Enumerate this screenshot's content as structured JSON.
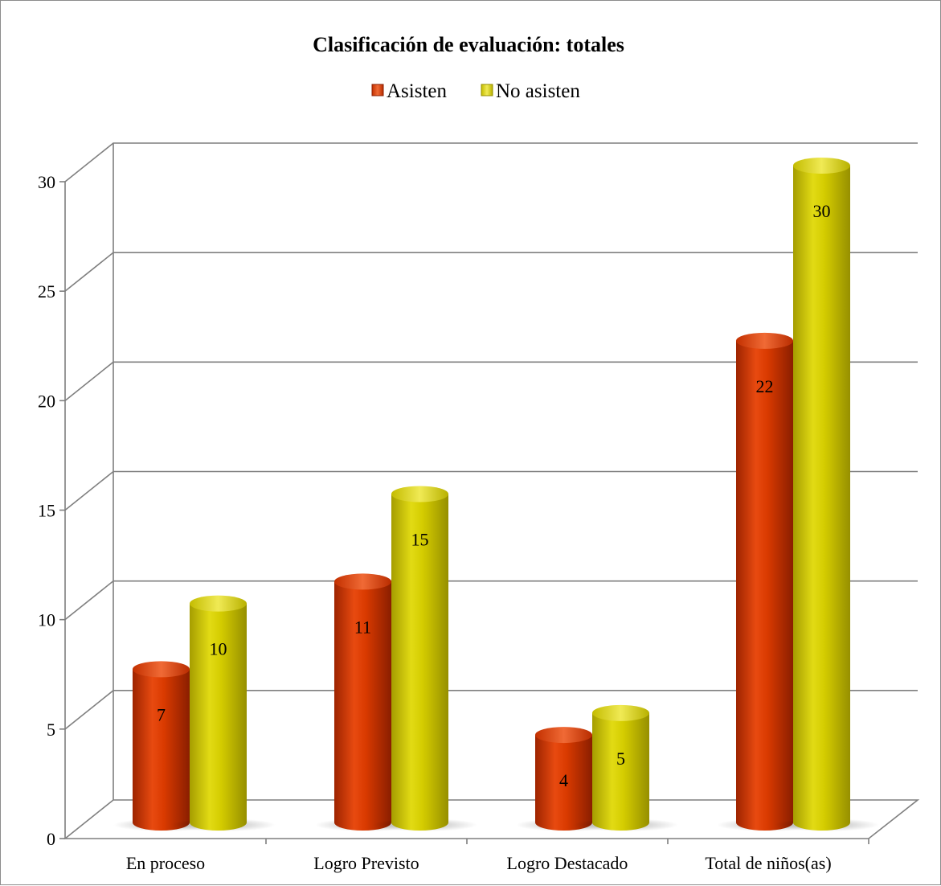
{
  "chart_data": {
    "type": "bar",
    "title": "Clasificación de evaluación: totales",
    "categories": [
      "En proceso",
      "Logro Previsto",
      "Logro Destacado",
      "Total de niños(as)"
    ],
    "series": [
      {
        "name": "Asisten",
        "values": [
          7,
          11,
          4,
          22
        ],
        "color": "#d93a00"
      },
      {
        "name": "No asisten",
        "values": [
          10,
          15,
          5,
          30
        ],
        "color": "#d4cc00"
      }
    ],
    "y_ticks": [
      "0",
      "5",
      "10",
      "15",
      "20",
      "25",
      "30"
    ],
    "ylim": [
      0,
      30
    ],
    "grid": true,
    "legend_position": "top",
    "style": "3d-cylinder"
  }
}
